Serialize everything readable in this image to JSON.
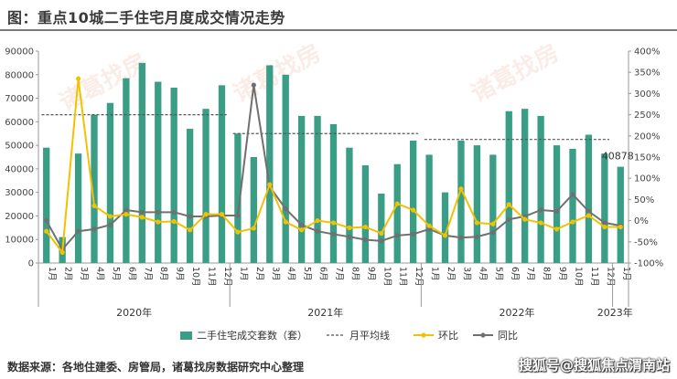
{
  "header": {
    "title": "图：重点10城二手住宅月度成交情况走势"
  },
  "footer": {
    "source": "数据来源：各地住建委、房管局，诸葛找房数据研究中心整理",
    "credit": "搜狐号@搜狐焦点渭南站"
  },
  "watermark": {
    "text": "诸葛找房"
  },
  "colors": {
    "bar": "#3a9e86",
    "avg_line": "#555555",
    "mom": "#f2c200",
    "yoy": "#707070",
    "axis": "#999999"
  },
  "chart_data": {
    "type": "bar",
    "categories": [
      "1月",
      "2月",
      "3月",
      "4月",
      "5月",
      "6月",
      "7月",
      "8月",
      "9月",
      "10月",
      "11月",
      "12月",
      "1月",
      "2月",
      "3月",
      "4月",
      "5月",
      "6月",
      "7月",
      "8月",
      "9月",
      "10月",
      "11月",
      "12月",
      "1月",
      "2月",
      "3月",
      "4月",
      "5月",
      "6月",
      "7月",
      "8月",
      "9月",
      "10月",
      "11月",
      "12月",
      "1月"
    ],
    "years": [
      {
        "label": "2020年",
        "start": 0,
        "end": 11
      },
      {
        "label": "2021年",
        "start": 12,
        "end": 23
      },
      {
        "label": "2022年",
        "start": 24,
        "end": 35
      },
      {
        "label": "2023年",
        "start": 36,
        "end": 36
      }
    ],
    "y_left": {
      "min": 0,
      "max": 90000,
      "ticks": [
        0,
        10000,
        20000,
        30000,
        40000,
        50000,
        60000,
        70000,
        80000,
        90000
      ]
    },
    "y_right": {
      "min": -100,
      "max": 400,
      "ticks": [
        "-100%",
        "-50%",
        "0%",
        "50%",
        "100%",
        "150%",
        "200%",
        "250%",
        "300%",
        "350%",
        "400%"
      ]
    },
    "series": [
      {
        "name": "二手住宅成交套数（套）",
        "type": "bar",
        "axis": "left",
        "values": [
          49000,
          11000,
          46500,
          63000,
          68000,
          78500,
          85000,
          77000,
          74500,
          57000,
          65500,
          75500,
          55000,
          45000,
          84000,
          80000,
          62500,
          62500,
          59000,
          49000,
          41500,
          29500,
          42000,
          52000,
          46000,
          30000,
          52000,
          50000,
          46000,
          64500,
          65500,
          62500,
          50000,
          48500,
          54500,
          46500,
          40878
        ]
      },
      {
        "name": "月平均线",
        "type": "avg",
        "axis": "left",
        "segments": [
          {
            "start": 0,
            "end": 11,
            "value": 63000
          },
          {
            "start": 12,
            "end": 23,
            "value": 55000
          },
          {
            "start": 24,
            "end": 35,
            "value": 52500
          }
        ]
      },
      {
        "name": "环比",
        "type": "line",
        "axis": "right",
        "values": [
          -25,
          -75,
          335,
          35,
          10,
          15,
          8,
          -3,
          -2,
          -22,
          15,
          15,
          -27,
          -18,
          85,
          -3,
          -22,
          0,
          -5,
          -17,
          -15,
          -30,
          40,
          25,
          -12,
          -35,
          75,
          -5,
          -8,
          38,
          3,
          -5,
          -20,
          -3,
          12,
          -15,
          -15
        ]
      },
      {
        "name": "同比",
        "type": "line",
        "axis": "right",
        "values": [
          0,
          -68,
          -25,
          -20,
          -10,
          25,
          20,
          20,
          20,
          10,
          10,
          12,
          12,
          320,
          80,
          28,
          -10,
          -25,
          -32,
          -38,
          -45,
          -48,
          -35,
          -32,
          -20,
          -35,
          -40,
          -38,
          -28,
          3,
          10,
          25,
          22,
          62,
          22,
          -5,
          -12
        ]
      }
    ],
    "annotations": [
      {
        "index": 36,
        "text": "40878"
      }
    ],
    "legend": {
      "placement": "bottom",
      "items": [
        "二手住宅成交套数（套）",
        "月平均线",
        "环比",
        "同比"
      ]
    },
    "grid": false
  }
}
